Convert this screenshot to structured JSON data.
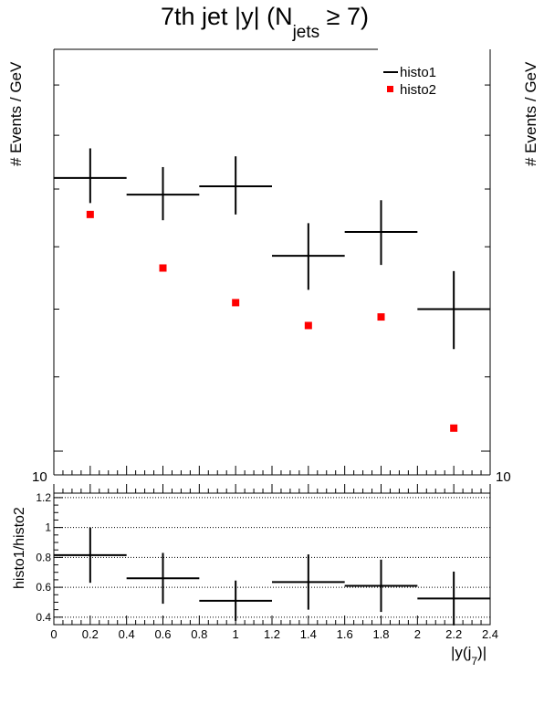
{
  "title": {
    "main": "7th jet |y| (N",
    "sub": "jets",
    "tail": " ≥ 7)"
  },
  "legend": {
    "histo1": "histo1",
    "histo2": "histo2"
  },
  "labels": {
    "ylabel_top": "# Events / GeV",
    "ylabel_ratio": "histo1/histo2",
    "xlabel_main": "|y(j",
    "xlabel_sub": "7",
    "xlabel_tail": ")|"
  },
  "colors": {
    "histo1": "#000000",
    "histo2": "#ff0000"
  },
  "chart_data": [
    {
      "type": "scatter",
      "title": "7th jet |y| (Njets ≥ 7)",
      "ylabel": "# Events / GeV",
      "yscale": "log",
      "ylim": [
        9.7,
        16.75
      ],
      "xlim": [
        0,
        2.4
      ],
      "y_tick_labels": [
        "10"
      ],
      "series": [
        {
          "name": "histo1",
          "style": "crosses",
          "x": [
            0.2,
            0.6,
            1.0,
            1.4,
            1.8,
            2.2
          ],
          "xerr": [
            0.2,
            0.2,
            0.2,
            0.2,
            0.2,
            0.2
          ],
          "y": [
            14.2,
            13.9,
            14.05,
            12.85,
            13.25,
            12.0
          ],
          "yerr_up": [
            0.55,
            0.5,
            0.55,
            0.55,
            0.55,
            0.6
          ],
          "yerr_down": [
            0.45,
            0.45,
            0.5,
            0.55,
            0.55,
            0.6
          ]
        },
        {
          "name": "histo2",
          "style": "markers",
          "x": [
            0.2,
            0.6,
            1.0,
            1.4,
            1.8,
            2.2
          ],
          "y": [
            13.55,
            12.65,
            12.1,
            11.75,
            11.88,
            10.3
          ]
        }
      ]
    },
    {
      "type": "scatter",
      "ylabel": "histo1/histo2",
      "xlabel": "|y(j7)|",
      "ylim": [
        0.35,
        1.23
      ],
      "xlim": [
        0,
        2.4
      ],
      "grid": true,
      "y_ticks": [
        0.4,
        0.6,
        0.8,
        1,
        1.2
      ],
      "x_ticks": [
        0,
        0.2,
        0.4,
        0.6,
        0.8,
        1,
        1.2,
        1.4,
        1.6,
        1.8,
        2,
        2.2,
        2.4
      ],
      "series": [
        {
          "name": "histo1/histo2",
          "style": "crosses",
          "x": [
            0.2,
            0.6,
            1.0,
            1.4,
            1.8,
            2.2
          ],
          "xerr": [
            0.2,
            0.2,
            0.2,
            0.2,
            0.2,
            0.2
          ],
          "y": [
            0.815,
            0.66,
            0.51,
            0.635,
            0.61,
            0.525
          ],
          "yerr": [
            0.185,
            0.17,
            0.135,
            0.185,
            0.175,
            0.18
          ]
        }
      ]
    }
  ]
}
